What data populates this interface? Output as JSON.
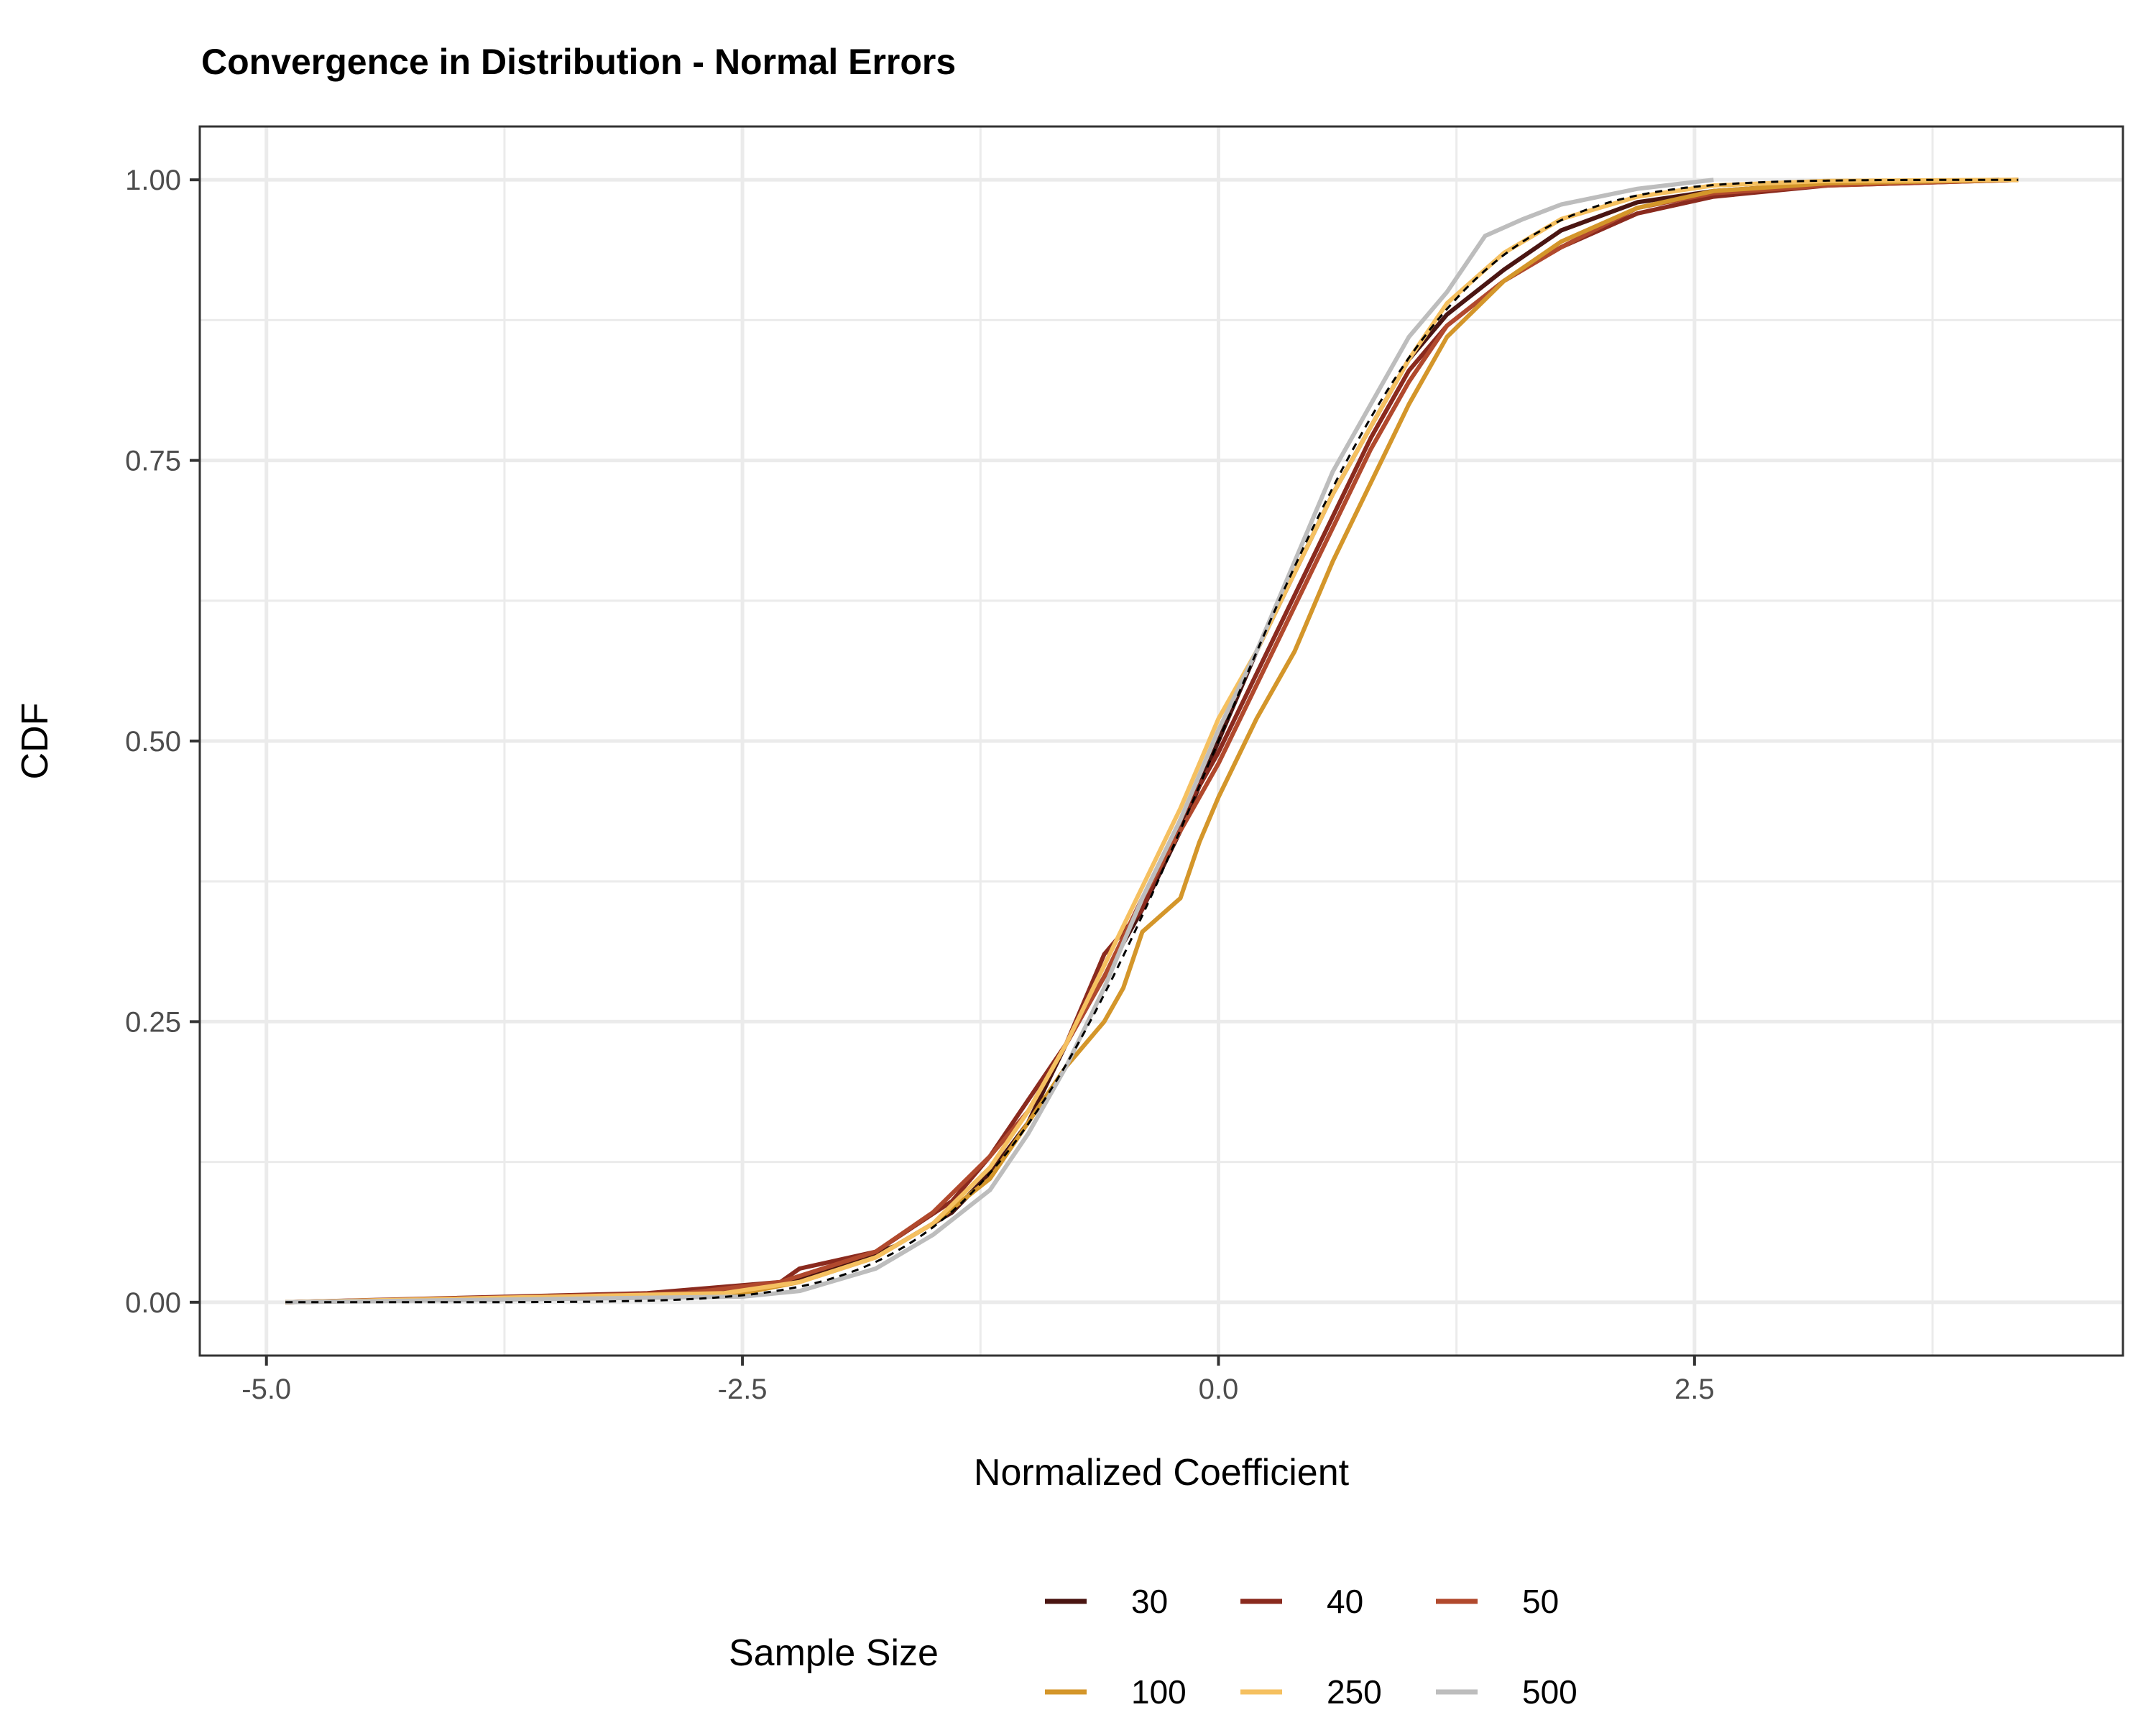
{
  "chart_data": {
    "type": "line",
    "title": "Convergence in Distribution - Normal Errors",
    "xlabel": "Normalized Coefficient",
    "ylabel": "CDF",
    "xlim": [
      -5.35,
      4.75
    ],
    "ylim": [
      -0.0475,
      1.0475
    ],
    "x_ticks": [
      -5.0,
      -2.5,
      0.0,
      2.5
    ],
    "x_tick_labels": [
      "-5.0",
      "-2.5",
      "0.0",
      "2.5"
    ],
    "y_ticks": [
      0.0,
      0.25,
      0.5,
      0.75,
      1.0
    ],
    "y_tick_labels": [
      "0.00",
      "0.25",
      "0.50",
      "0.75",
      "1.00"
    ],
    "grid": true,
    "legend": {
      "title": "Sample Size",
      "position": "bottom"
    },
    "reference_curve": {
      "style": "dashed",
      "color": "#000000",
      "description": "standard normal CDF"
    },
    "series": [
      {
        "name": "30",
        "color": "#4a1512",
        "points": [
          [
            -4.9,
            0.0
          ],
          [
            -3.5,
            0.004
          ],
          [
            -2.5,
            0.01
          ],
          [
            -2.1,
            0.025
          ],
          [
            -1.7,
            0.05
          ],
          [
            -1.4,
            0.08
          ],
          [
            -1.2,
            0.115
          ],
          [
            -1.0,
            0.16
          ],
          [
            -0.8,
            0.23
          ],
          [
            -0.6,
            0.29
          ],
          [
            -0.4,
            0.35
          ],
          [
            -0.2,
            0.42
          ],
          [
            0.0,
            0.5
          ],
          [
            0.2,
            0.58
          ],
          [
            0.4,
            0.65
          ],
          [
            0.6,
            0.72
          ],
          [
            0.8,
            0.78
          ],
          [
            1.0,
            0.84
          ],
          [
            1.2,
            0.88
          ],
          [
            1.5,
            0.92
          ],
          [
            1.8,
            0.955
          ],
          [
            2.2,
            0.98
          ],
          [
            2.6,
            0.99
          ],
          [
            3.2,
            0.997
          ],
          [
            4.1,
            1.0
          ]
        ]
      },
      {
        "name": "40",
        "color": "#8a2a1e",
        "points": [
          [
            -4.9,
            0.0
          ],
          [
            -3.0,
            0.008
          ],
          [
            -2.3,
            0.018
          ],
          [
            -2.2,
            0.03
          ],
          [
            -1.8,
            0.045
          ],
          [
            -1.4,
            0.09
          ],
          [
            -1.2,
            0.13
          ],
          [
            -1.0,
            0.18
          ],
          [
            -0.8,
            0.23
          ],
          [
            -0.6,
            0.31
          ],
          [
            -0.4,
            0.35
          ],
          [
            -0.2,
            0.43
          ],
          [
            0.0,
            0.49
          ],
          [
            0.2,
            0.56
          ],
          [
            0.4,
            0.63
          ],
          [
            0.6,
            0.7
          ],
          [
            0.8,
            0.77
          ],
          [
            1.0,
            0.83
          ],
          [
            1.2,
            0.87
          ],
          [
            1.5,
            0.91
          ],
          [
            1.8,
            0.94
          ],
          [
            2.2,
            0.97
          ],
          [
            2.6,
            0.985
          ],
          [
            3.2,
            0.995
          ],
          [
            4.2,
            1.0
          ]
        ]
      },
      {
        "name": "50",
        "color": "#b1492d",
        "points": [
          [
            -4.9,
            0.0
          ],
          [
            -2.8,
            0.008
          ],
          [
            -2.3,
            0.018
          ],
          [
            -1.8,
            0.045
          ],
          [
            -1.5,
            0.08
          ],
          [
            -1.2,
            0.13
          ],
          [
            -1.0,
            0.17
          ],
          [
            -0.8,
            0.23
          ],
          [
            -0.6,
            0.29
          ],
          [
            -0.4,
            0.36
          ],
          [
            -0.2,
            0.42
          ],
          [
            0.0,
            0.48
          ],
          [
            0.2,
            0.55
          ],
          [
            0.4,
            0.62
          ],
          [
            0.6,
            0.69
          ],
          [
            0.8,
            0.76
          ],
          [
            1.0,
            0.82
          ],
          [
            1.2,
            0.87
          ],
          [
            1.5,
            0.91
          ],
          [
            1.8,
            0.94
          ],
          [
            2.2,
            0.975
          ],
          [
            2.6,
            0.988
          ],
          [
            3.2,
            0.995
          ],
          [
            4.2,
            1.0
          ]
        ]
      },
      {
        "name": "100",
        "color": "#d4962a",
        "points": [
          [
            -4.9,
            0.0
          ],
          [
            -2.5,
            0.008
          ],
          [
            -2.2,
            0.018
          ],
          [
            -1.8,
            0.04
          ],
          [
            -1.5,
            0.07
          ],
          [
            -1.2,
            0.11
          ],
          [
            -1.0,
            0.16
          ],
          [
            -0.8,
            0.21
          ],
          [
            -0.6,
            0.25
          ],
          [
            -0.5,
            0.28
          ],
          [
            -0.4,
            0.33
          ],
          [
            -0.2,
            0.36
          ],
          [
            -0.1,
            0.41
          ],
          [
            0.0,
            0.45
          ],
          [
            0.2,
            0.52
          ],
          [
            0.4,
            0.58
          ],
          [
            0.6,
            0.66
          ],
          [
            0.8,
            0.73
          ],
          [
            1.0,
            0.8
          ],
          [
            1.2,
            0.86
          ],
          [
            1.5,
            0.91
          ],
          [
            1.8,
            0.945
          ],
          [
            2.2,
            0.975
          ],
          [
            2.6,
            0.99
          ],
          [
            3.2,
            0.997
          ],
          [
            4.2,
            1.0
          ]
        ]
      },
      {
        "name": "250",
        "color": "#f5c060",
        "points": [
          [
            -4.9,
            0.0
          ],
          [
            -2.6,
            0.008
          ],
          [
            -2.2,
            0.018
          ],
          [
            -1.8,
            0.04
          ],
          [
            -1.5,
            0.07
          ],
          [
            -1.2,
            0.12
          ],
          [
            -1.0,
            0.17
          ],
          [
            -0.8,
            0.23
          ],
          [
            -0.6,
            0.3
          ],
          [
            -0.4,
            0.37
          ],
          [
            -0.2,
            0.44
          ],
          [
            0.0,
            0.52
          ],
          [
            0.2,
            0.58
          ],
          [
            0.4,
            0.65
          ],
          [
            0.6,
            0.72
          ],
          [
            0.8,
            0.78
          ],
          [
            1.0,
            0.84
          ],
          [
            1.2,
            0.89
          ],
          [
            1.5,
            0.935
          ],
          [
            1.8,
            0.965
          ],
          [
            2.2,
            0.985
          ],
          [
            2.6,
            0.995
          ],
          [
            3.2,
            0.999
          ],
          [
            4.2,
            1.0
          ]
        ]
      },
      {
        "name": "500",
        "color": "#bdbdbd",
        "points": [
          [
            -4.9,
            0.0
          ],
          [
            -2.5,
            0.005
          ],
          [
            -2.2,
            0.01
          ],
          [
            -1.8,
            0.03
          ],
          [
            -1.5,
            0.06
          ],
          [
            -1.2,
            0.1
          ],
          [
            -1.0,
            0.15
          ],
          [
            -0.8,
            0.21
          ],
          [
            -0.6,
            0.28
          ],
          [
            -0.4,
            0.36
          ],
          [
            -0.2,
            0.43
          ],
          [
            0.0,
            0.51
          ],
          [
            0.2,
            0.58
          ],
          [
            0.4,
            0.66
          ],
          [
            0.6,
            0.74
          ],
          [
            0.8,
            0.8
          ],
          [
            1.0,
            0.86
          ],
          [
            1.2,
            0.9
          ],
          [
            1.4,
            0.95
          ],
          [
            1.6,
            0.965
          ],
          [
            1.8,
            0.978
          ],
          [
            2.0,
            0.985
          ],
          [
            2.2,
            0.992
          ],
          [
            2.4,
            0.996
          ],
          [
            2.6,
            1.0
          ]
        ]
      }
    ]
  }
}
